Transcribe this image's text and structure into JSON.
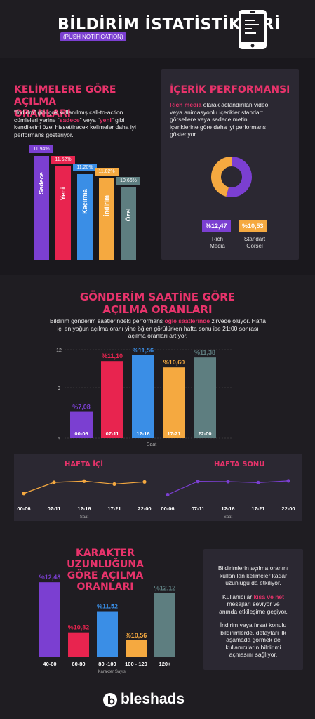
{
  "header": {
    "title": "BİLDİRİM İSTATİSTİKLERİ",
    "subtitle": "(PUSH NOTIFICATION)"
  },
  "colors": {
    "purple": "#7b3fd1",
    "red": "#e8244f",
    "blue": "#3a8ee6",
    "orange": "#f5a940",
    "teal": "#5e7e80",
    "pink": "#e8336b",
    "dark": "#1f1d22",
    "panel": "#2b2832"
  },
  "keywords": {
    "title_line1": "KELİMELERE GÖRE AÇILMA",
    "title_line2": "ORANLARI",
    "text_line1": "“İndirim” gibi çok kullanılmış call-to-action",
    "text_line2_a": "cümleleri yerine “",
    "text_line2_b": "sadece",
    "text_line2_c": "” veya “",
    "text_line2_d": "yeni",
    "text_line2_e": "” gibi",
    "text_line3": "kendilerini özel hissettirecek kelimeler daha iyi",
    "text_line4": "performans gösteriyor."
  },
  "content_perf": {
    "title": "İÇERİK PERFORMANSI",
    "text_bold": "Rich media",
    "text_line1": " olarak adlandırılan video",
    "text_line2": "veya animasyonlu içerikler standart",
    "text_line3": "görsellere veya sadece metin",
    "text_line4": "içeriklerine göre daha iyi performans",
    "text_line5": "gösteriyor.",
    "rich_value": "%12,47",
    "rich_label1": "Rich",
    "rich_label2": "Media",
    "std_value": "%10,53",
    "std_label1": "Standart",
    "std_label2": "Görsel"
  },
  "send_time": {
    "title_line1": "GÖNDERİM SAATİNE GÖRE",
    "title_line2": "AÇILMA ORANLARI",
    "text_line1_a": "Bildirim gönderim saatlerindeki performans ",
    "text_line1_b": "öğle saatlerinde",
    "text_line1_c": " zirvede oluyor. Hafta",
    "text_line2": "içi en yoğun açılma oranı yine öğlen görülürken hafta sonu ise 21:00 sonrası",
    "text_line3": "açılma oranları artıyor.",
    "axis_label": "Saat"
  },
  "week": {
    "weekday_title": "HAFTA İÇİ",
    "weekend_title": "HAFTA SONU",
    "axis_label": "Saat",
    "labels": [
      "00-06",
      "07-11",
      "12-16",
      "17-21",
      "22-00"
    ]
  },
  "char_len": {
    "title_line1": "KARAKTER UZUNLUĞUNA",
    "title_line2": "GÖRE AÇILMA ORANLARI",
    "axis_label": "Karakter Sayısı",
    "info_p1_l1": "Bildirimlerin açılma oranını",
    "info_p1_l2": "kullanılan kelimeler kadar",
    "info_p1_l3": "uzunluğu da etkiliyor.",
    "info_p2_l1a": "Kullanıcılar ",
    "info_p2_l1b": "kısa ve net",
    "info_p2_l2": "mesajları seviyor ve",
    "info_p2_l3": "anında etkileşime geçiyor.",
    "info_p3_l1": "İndirim veya fırsat konulu",
    "info_p3_l2": "bildirimlerde, detayları ilk",
    "info_p3_l3": "aşamada görmek de",
    "info_p3_l4": "kullanıcıların bildirimi",
    "info_p3_l5": "açmasını sağlıyor."
  },
  "footer": {
    "brand": "bleshads"
  },
  "chart_data": [
    {
      "type": "bar",
      "title": "KELİMELERE GÖRE AÇILMA ORANLARI",
      "categories": [
        "Sadece",
        "Yeni",
        "Kaçırma",
        "İndirim",
        "Özel"
      ],
      "values": [
        11.94,
        11.52,
        11.2,
        11.02,
        10.66
      ],
      "value_labels": [
        "11.94%",
        "11.52%",
        "11.20%",
        "11.02%",
        "10.66%"
      ],
      "colors": [
        "#7b3fd1",
        "#e8244f",
        "#3a8ee6",
        "#f5a940",
        "#5e7e80"
      ]
    },
    {
      "type": "pie",
      "title": "İÇERİK PERFORMANSI",
      "categories": [
        "Rich Media",
        "Standart Görsel"
      ],
      "values": [
        12.47,
        10.53
      ],
      "colors": [
        "#7b3fd1",
        "#f5a940"
      ]
    },
    {
      "type": "bar",
      "title": "GÖNDERİM SAATİNE GÖRE AÇILMA ORANLARI",
      "categories": [
        "00-06",
        "07-11",
        "12-16",
        "17-21",
        "22-00"
      ],
      "values": [
        7.08,
        11.1,
        11.56,
        10.6,
        11.38
      ],
      "value_labels": [
        "%7,08",
        "%11,10",
        "%11,56",
        "%10,60",
        "%11,38"
      ],
      "colors": [
        "#7b3fd1",
        "#e8244f",
        "#3a8ee6",
        "#f5a940",
        "#5e7e80"
      ],
      "xlabel": "Saat",
      "yticks": [
        "12",
        "9",
        "5"
      ],
      "ylim": [
        5,
        12
      ]
    },
    {
      "type": "line",
      "title": "HAFTA İÇİ",
      "categories": [
        "00-06",
        "07-11",
        "12-16",
        "17-21",
        "22-00"
      ],
      "values": [
        6.5,
        11.0,
        11.5,
        10.3,
        11.2
      ],
      "color": "#f5a940",
      "ylim": [
        5,
        13
      ],
      "xlabel": "Saat"
    },
    {
      "type": "line",
      "title": "HAFTA SONU",
      "categories": [
        "00-06",
        "07-11",
        "12-16",
        "17-21",
        "22-00"
      ],
      "values": [
        6.0,
        11.4,
        11.3,
        10.9,
        11.6
      ],
      "color": "#7b3fd1",
      "ylim": [
        5,
        13
      ],
      "xlabel": "Saat"
    },
    {
      "type": "bar",
      "title": "KARAKTER UZUNLUĞUNA GÖRE AÇILMA ORANLARI",
      "categories": [
        "40-60",
        "60-80",
        "80 -100",
        "100 - 120",
        "120+"
      ],
      "values": [
        12.48,
        10.82,
        11.52,
        10.56,
        12.12
      ],
      "value_labels": [
        "%12,48",
        "%10,82",
        "%11,52",
        "%10,56",
        "%12,12"
      ],
      "colors": [
        "#7b3fd1",
        "#e8244f",
        "#3a8ee6",
        "#f5a940",
        "#5e7e80"
      ],
      "xlabel": "Karakter Sayısı",
      "ylim": [
        10,
        12.6
      ]
    }
  ]
}
